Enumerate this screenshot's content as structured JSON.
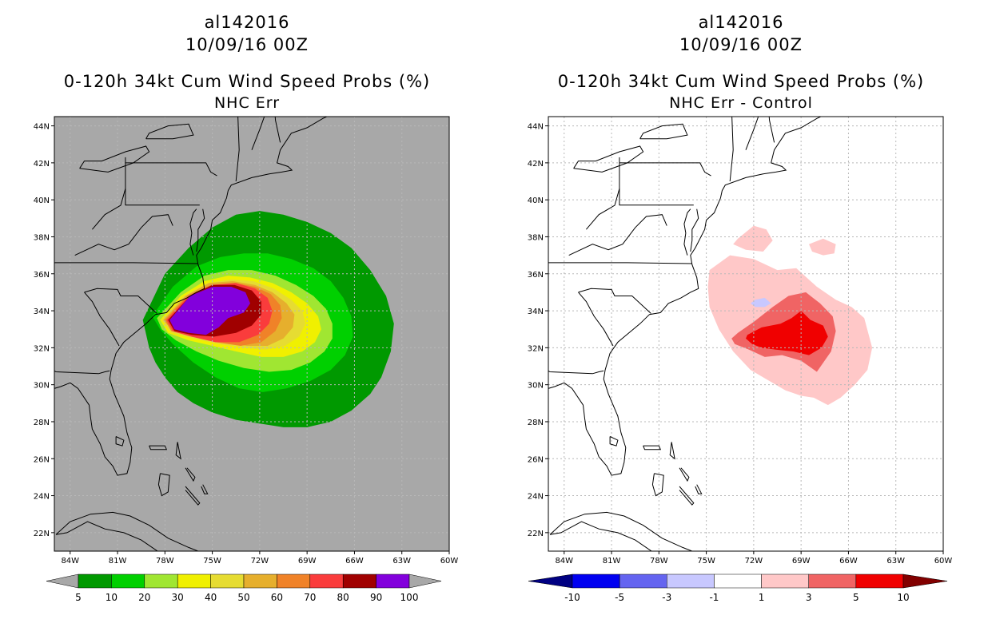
{
  "panels": [
    {
      "storm_id": "al142016",
      "datetime": "10/09/16 00Z",
      "product": "0-120h 34kt Cum Wind Speed Probs (%)",
      "subtitle": "NHC Err"
    },
    {
      "storm_id": "al142016",
      "datetime": "10/09/16 00Z",
      "product": "0-120h 34kt Cum Wind Speed Probs (%)",
      "subtitle": "NHC Err - Control"
    }
  ],
  "chart_data": [
    {
      "type": "heatmap",
      "title": "0-120h 34kt Cum Wind Speed Probs (%)",
      "subtitle": "NHC Err",
      "x_range": [
        -85,
        -60
      ],
      "y_range": [
        21,
        44.5
      ],
      "x_ticks": [
        "84W",
        "81W",
        "78W",
        "75W",
        "72W",
        "69W",
        "66W",
        "63W",
        "60W"
      ],
      "y_ticks": [
        "22N",
        "24N",
        "26N",
        "28N",
        "30N",
        "32N",
        "34N",
        "36N",
        "38N",
        "40N",
        "42N",
        "44N"
      ],
      "background_color": "#a8a8a8",
      "levels": [
        5,
        10,
        20,
        30,
        40,
        50,
        60,
        70,
        80,
        90,
        100
      ],
      "level_labels": [
        "5",
        "10",
        "20",
        "30",
        "40",
        "50",
        "60",
        "70",
        "80",
        "90",
        "100"
      ],
      "colors": [
        "#009900",
        "#00d000",
        "#a0e632",
        "#f0f000",
        "#e6dc32",
        "#e6af2d",
        "#f08228",
        "#fa3c3c",
        "#a00000",
        "#8200dc"
      ],
      "contours": [
        {
          "min": 5,
          "color": "#009900",
          "lon": [
            -79.4,
            -78.0,
            -76.5,
            -75.0,
            -73.5,
            -72.0,
            -70.5,
            -69.0,
            -67.5,
            -66.2,
            -65.0,
            -64.0,
            -63.5,
            -63.7,
            -64.3,
            -65.0,
            -66.2,
            -67.5,
            -69.0,
            -70.5,
            -72.0,
            -73.5,
            -75.0,
            -76.2,
            -77.2,
            -78.0,
            -78.6,
            -79.0
          ],
          "lat": [
            33.5,
            36.0,
            37.4,
            38.5,
            39.2,
            39.4,
            39.2,
            38.8,
            38.2,
            37.4,
            36.2,
            34.8,
            33.3,
            31.8,
            30.4,
            29.5,
            28.6,
            28.0,
            27.7,
            27.7,
            27.9,
            28.1,
            28.5,
            29.0,
            29.6,
            30.4,
            31.2,
            32.0
          ]
        },
        {
          "min": 10,
          "color": "#00d000",
          "lon": [
            -78.8,
            -77.5,
            -76.0,
            -74.5,
            -73.0,
            -71.5,
            -70.0,
            -68.6,
            -67.5,
            -66.7,
            -66.2,
            -66.1,
            -66.6,
            -67.5,
            -68.8,
            -70.3,
            -71.8,
            -73.3,
            -74.8,
            -76.2,
            -77.5,
            -78.3
          ],
          "lat": [
            33.7,
            35.3,
            36.4,
            36.9,
            37.1,
            37.1,
            36.8,
            36.3,
            35.6,
            34.7,
            33.7,
            32.6,
            31.6,
            30.8,
            30.2,
            29.8,
            29.6,
            29.8,
            30.4,
            31.2,
            32.2,
            33.0
          ]
        },
        {
          "min": 20,
          "color": "#a0e632",
          "lon": [
            -78.5,
            -77.0,
            -75.5,
            -74.0,
            -72.5,
            -71.0,
            -69.7,
            -68.6,
            -67.8,
            -67.4,
            -67.4,
            -67.9,
            -68.8,
            -70.0,
            -71.4,
            -73.0,
            -74.6,
            -76.0,
            -77.3,
            -78.2
          ],
          "lat": [
            33.6,
            35.0,
            35.9,
            36.2,
            36.2,
            35.9,
            35.4,
            34.8,
            34.1,
            33.3,
            32.5,
            31.8,
            31.2,
            30.8,
            30.7,
            30.9,
            31.3,
            31.8,
            32.4,
            33.0
          ]
        },
        {
          "min": 30,
          "color": "#f0f000",
          "lon": [
            -78.3,
            -77.0,
            -75.5,
            -74.0,
            -72.6,
            -71.2,
            -70.0,
            -69.0,
            -68.3,
            -68.1,
            -68.5,
            -69.3,
            -70.5,
            -71.9,
            -73.5,
            -75.0,
            -76.5,
            -77.8
          ],
          "lat": [
            33.5,
            34.8,
            35.6,
            35.9,
            35.8,
            35.5,
            35.0,
            34.4,
            33.7,
            33.0,
            32.3,
            31.8,
            31.5,
            31.5,
            31.8,
            32.1,
            32.4,
            32.8
          ]
        },
        {
          "min": 40,
          "color": "#e6dc32",
          "lon": [
            -78.2,
            -76.8,
            -75.3,
            -73.8,
            -72.4,
            -71.1,
            -70.0,
            -69.3,
            -69.1,
            -69.5,
            -70.4,
            -71.6,
            -73.0,
            -74.6,
            -76.2,
            -77.6
          ],
          "lat": [
            33.5,
            34.8,
            35.5,
            35.7,
            35.6,
            35.2,
            34.6,
            34.0,
            33.3,
            32.6,
            32.1,
            31.9,
            32.0,
            32.2,
            32.5,
            32.8
          ]
        },
        {
          "min": 50,
          "color": "#e6af2d",
          "lon": [
            -78.1,
            -76.7,
            -75.2,
            -73.7,
            -72.3,
            -71.2,
            -70.3,
            -69.8,
            -69.9,
            -70.5,
            -71.5,
            -72.8,
            -74.4,
            -76.0,
            -77.5
          ],
          "lat": [
            33.5,
            34.8,
            35.5,
            35.6,
            35.4,
            35.0,
            34.4,
            33.8,
            33.1,
            32.5,
            32.1,
            32.1,
            32.3,
            32.6,
            32.9
          ]
        },
        {
          "min": 60,
          "color": "#f08228",
          "lon": [
            -78.0,
            -76.6,
            -75.1,
            -73.6,
            -72.3,
            -71.3,
            -70.7,
            -70.6,
            -71.0,
            -71.9,
            -73.2,
            -74.8,
            -76.3,
            -77.6
          ],
          "lat": [
            33.5,
            34.8,
            35.4,
            35.5,
            35.3,
            34.9,
            34.3,
            33.6,
            32.9,
            32.3,
            32.1,
            32.3,
            32.6,
            32.9
          ]
        },
        {
          "min": 70,
          "color": "#fa3c3c",
          "lon": [
            -77.9,
            -76.5,
            -75.0,
            -73.5,
            -72.3,
            -71.5,
            -71.2,
            -71.4,
            -72.1,
            -73.3,
            -74.8,
            -76.3,
            -77.5
          ],
          "lat": [
            33.5,
            34.8,
            35.4,
            35.5,
            35.2,
            34.7,
            34.0,
            33.3,
            32.7,
            32.3,
            32.3,
            32.6,
            32.9
          ]
        },
        {
          "min": 80,
          "color": "#a00000",
          "lon": [
            -77.8,
            -76.4,
            -75.0,
            -73.6,
            -72.5,
            -71.9,
            -71.9,
            -72.5,
            -73.5,
            -74.9,
            -76.3,
            -77.4
          ],
          "lat": [
            33.5,
            34.8,
            35.4,
            35.4,
            35.1,
            34.5,
            33.8,
            33.2,
            32.8,
            32.6,
            32.7,
            32.9
          ]
        },
        {
          "min": 90,
          "color": "#8200dc",
          "lon": [
            -77.7,
            -76.4,
            -75.0,
            -73.8,
            -72.9,
            -72.6,
            -73.0,
            -74.0,
            -74.6,
            -75.4,
            -76.5,
            -77.4
          ],
          "lat": [
            33.5,
            34.8,
            35.3,
            35.3,
            35.0,
            34.4,
            33.9,
            33.6,
            33.1,
            32.7,
            32.8,
            33.0
          ]
        }
      ]
    },
    {
      "type": "heatmap",
      "title": "0-120h 34kt Cum Wind Speed Probs (%)",
      "subtitle": "NHC Err - Control",
      "x_range": [
        -85,
        -60
      ],
      "y_range": [
        21,
        44.5
      ],
      "x_ticks": [
        "84W",
        "81W",
        "78W",
        "75W",
        "72W",
        "69W",
        "66W",
        "63W",
        "60W"
      ],
      "y_ticks": [
        "22N",
        "24N",
        "26N",
        "28N",
        "30N",
        "32N",
        "34N",
        "36N",
        "38N",
        "40N",
        "42N",
        "44N"
      ],
      "background_color": "#ffffff",
      "levels": [
        -10,
        -5,
        -3,
        -1,
        1,
        3,
        5,
        10
      ],
      "level_labels": [
        "-10",
        "-5",
        "-3",
        "-1",
        "1",
        "3",
        "5",
        "10"
      ],
      "colors": [
        "#000082",
        "#0000f0",
        "#6464f0",
        "#c8c8ff",
        "#ffffff",
        "#ffc8c8",
        "#f06464",
        "#f00000",
        "#820000"
      ],
      "contours": [
        {
          "min": 1,
          "color": "#ffc8c8",
          "lon": [
            -74.8,
            -73.5,
            -72.0,
            -70.5,
            -69.3,
            -68.0,
            -66.8,
            -65.8,
            -65.0,
            -64.5,
            -64.8,
            -65.6,
            -66.5,
            -67.3,
            -68.2,
            -69.0,
            -70.0,
            -71.0,
            -72.2,
            -73.3,
            -74.2,
            -74.8,
            -74.9
          ],
          "lat": [
            36.2,
            37.0,
            36.8,
            36.2,
            36.3,
            35.3,
            34.6,
            34.2,
            33.6,
            32.0,
            30.8,
            30.0,
            29.3,
            28.9,
            29.3,
            29.4,
            29.7,
            30.2,
            30.8,
            31.8,
            33.0,
            34.2,
            35.3
          ]
        },
        {
          "min": 1,
          "color": "#ffc8c8",
          "lon": [
            -73.0,
            -72.0,
            -71.2,
            -70.8,
            -71.4,
            -72.5,
            -73.3
          ],
          "lat": [
            37.9,
            38.6,
            38.4,
            37.8,
            37.2,
            37.3,
            37.6
          ]
        },
        {
          "min": 1,
          "color": "#ffc8c8",
          "lon": [
            -68.5,
            -67.6,
            -66.8,
            -66.9,
            -67.6,
            -68.3
          ],
          "lat": [
            37.6,
            37.9,
            37.6,
            37.1,
            37.0,
            37.2
          ]
        },
        {
          "min": -3,
          "color": "#c8c8ff",
          "lon": [
            -71.9,
            -71.3,
            -70.9,
            -71.3,
            -71.9,
            -72.2
          ],
          "lat": [
            34.6,
            34.7,
            34.4,
            34.2,
            34.2,
            34.4
          ]
        },
        {
          "min": 3,
          "color": "#f06464",
          "lon": [
            -73.0,
            -72.0,
            -70.8,
            -69.8,
            -68.7,
            -67.8,
            -67.0,
            -66.8,
            -67.1,
            -68.0,
            -69.0,
            -70.2,
            -71.3,
            -72.3,
            -73.2,
            -73.4
          ],
          "lat": [
            32.8,
            33.4,
            34.2,
            34.8,
            35.0,
            34.4,
            33.7,
            32.9,
            31.8,
            30.7,
            31.3,
            31.6,
            31.5,
            31.9,
            32.2,
            32.5
          ]
        },
        {
          "min": 5,
          "color": "#f00000",
          "lon": [
            -72.4,
            -71.5,
            -70.3,
            -69.6,
            -69.0,
            -68.4,
            -67.6,
            -67.3,
            -67.7,
            -68.5,
            -69.5,
            -70.6,
            -71.5,
            -72.1,
            -72.5
          ],
          "lat": [
            32.7,
            33.1,
            33.3,
            33.6,
            34.0,
            33.5,
            33.2,
            32.6,
            32.0,
            31.6,
            31.8,
            31.9,
            32.0,
            32.2,
            32.5
          ]
        }
      ]
    }
  ],
  "colorbars": [
    {
      "labels": [
        "5",
        "10",
        "20",
        "30",
        "40",
        "50",
        "60",
        "70",
        "80",
        "90",
        "100"
      ]
    },
    {
      "labels": [
        "-10",
        "-5",
        "-3",
        "-1",
        "1",
        "3",
        "5",
        "10"
      ]
    }
  ]
}
